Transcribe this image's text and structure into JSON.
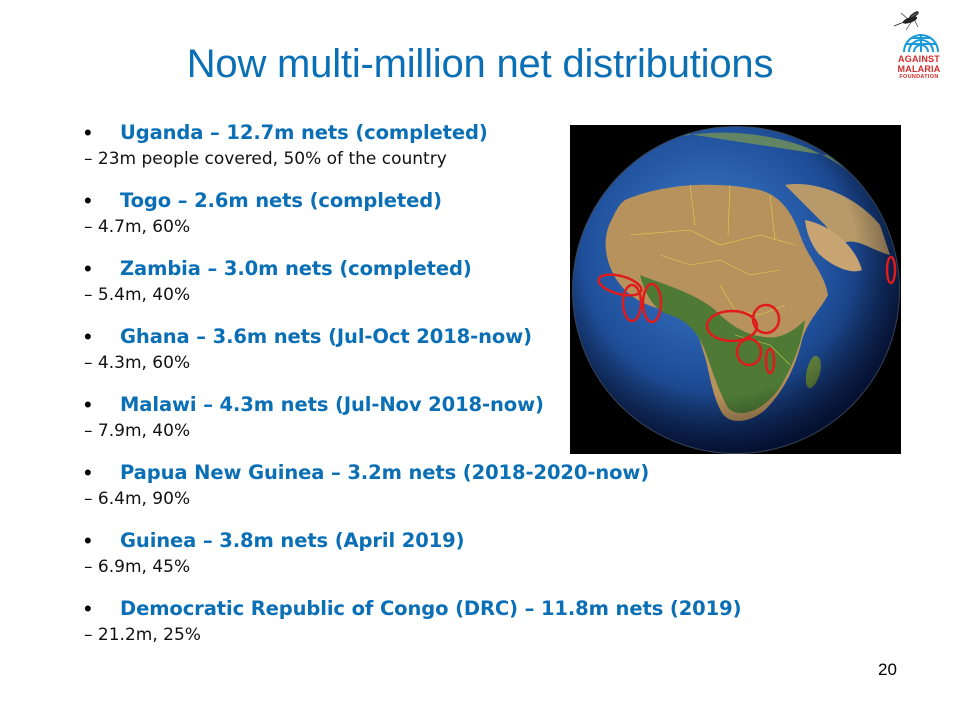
{
  "slide": {
    "title": "Now multi-million net distributions",
    "page_number": "20"
  },
  "logo": {
    "line1": "AGAINST",
    "line2": "MALARIA",
    "line3": "FOUNDATION"
  },
  "items": [
    {
      "bullet": "•",
      "heading": "Uganda – 12.7m nets (completed)",
      "detail": "– 23m people covered, 50% of the country"
    },
    {
      "bullet": "•",
      "heading": "Togo – 2.6m nets (completed)",
      "detail": "– 4.7m, 60%"
    },
    {
      "bullet": "•",
      "heading": "Zambia – 3.0m nets (completed)",
      "detail": "– 5.4m, 40%"
    },
    {
      "bullet": "•",
      "heading": "Ghana – 3.6m nets (Jul-Oct 2018-now)",
      "detail": "– 4.3m, 60%"
    },
    {
      "bullet": "•",
      "heading": "Malawi – 4.3m nets (Jul-Nov 2018-now)",
      "detail": "– 7.9m, 40%"
    },
    {
      "bullet": "•",
      "heading": "Papua New Guinea – 3.2m nets (2018-2020-now)",
      "detail": "– 6.4m, 90%"
    },
    {
      "bullet": "•",
      "heading": "Guinea – 3.8m nets (April 2019)",
      "detail": "– 6.9m, 45%"
    },
    {
      "bullet": "•",
      "heading": "Democratic Republic of Congo (DRC) – 11.8m nets (2019)",
      "detail": "– 21.2m, 25%"
    }
  ],
  "colors": {
    "accent": "#0b6fb6",
    "marker": "#e01b1b",
    "logo_red": "#d42a2a"
  }
}
